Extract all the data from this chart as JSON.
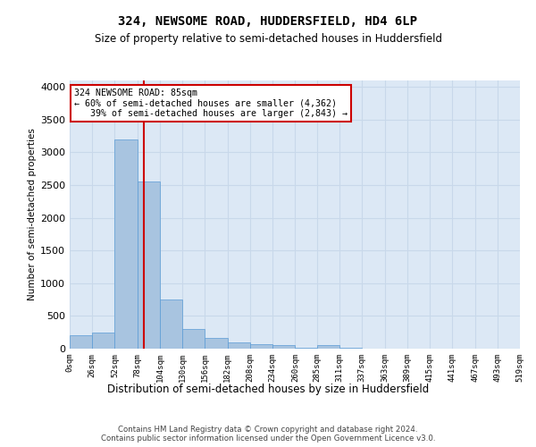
{
  "title": "324, NEWSOME ROAD, HUDDERSFIELD, HD4 6LP",
  "subtitle": "Size of property relative to semi-detached houses in Huddersfield",
  "xlabel": "Distribution of semi-detached houses by size in Huddersfield",
  "ylabel": "Number of semi-detached properties",
  "footer_line1": "Contains HM Land Registry data © Crown copyright and database right 2024.",
  "footer_line2": "Contains public sector information licensed under the Open Government Licence v3.0.",
  "bar_edges": [
    0,
    26,
    52,
    78,
    104,
    130,
    156,
    182,
    208,
    234,
    260,
    285,
    311,
    337,
    363,
    389,
    415,
    441,
    467,
    493,
    519
  ],
  "bar_heights": [
    200,
    250,
    3200,
    2550,
    750,
    300,
    170,
    100,
    70,
    55,
    20,
    55,
    10,
    5,
    5,
    3,
    2,
    1,
    1,
    1
  ],
  "bar_color": "#a8c4e0",
  "bar_edgecolor": "#5b9bd5",
  "grid_color": "#c8d8ea",
  "background_color": "#dce8f5",
  "vline_x": 85,
  "vline_color": "#cc0000",
  "annotation_line1": "324 NEWSOME ROAD: 85sqm",
  "annotation_line2": "← 60% of semi-detached houses are smaller (4,362)",
  "annotation_line3": "   39% of semi-detached houses are larger (2,843) →",
  "annotation_box_color": "#ffffff",
  "annotation_border_color": "#cc0000",
  "ylim": [
    0,
    4100
  ],
  "yticks": [
    0,
    500,
    1000,
    1500,
    2000,
    2500,
    3000,
    3500,
    4000
  ],
  "tick_labels": [
    "0sqm",
    "26sqm",
    "52sqm",
    "78sqm",
    "104sqm",
    "130sqm",
    "156sqm",
    "182sqm",
    "208sqm",
    "234sqm",
    "260sqm",
    "285sqm",
    "311sqm",
    "337sqm",
    "363sqm",
    "389sqm",
    "415sqm",
    "441sqm",
    "467sqm",
    "493sqm",
    "519sqm"
  ]
}
